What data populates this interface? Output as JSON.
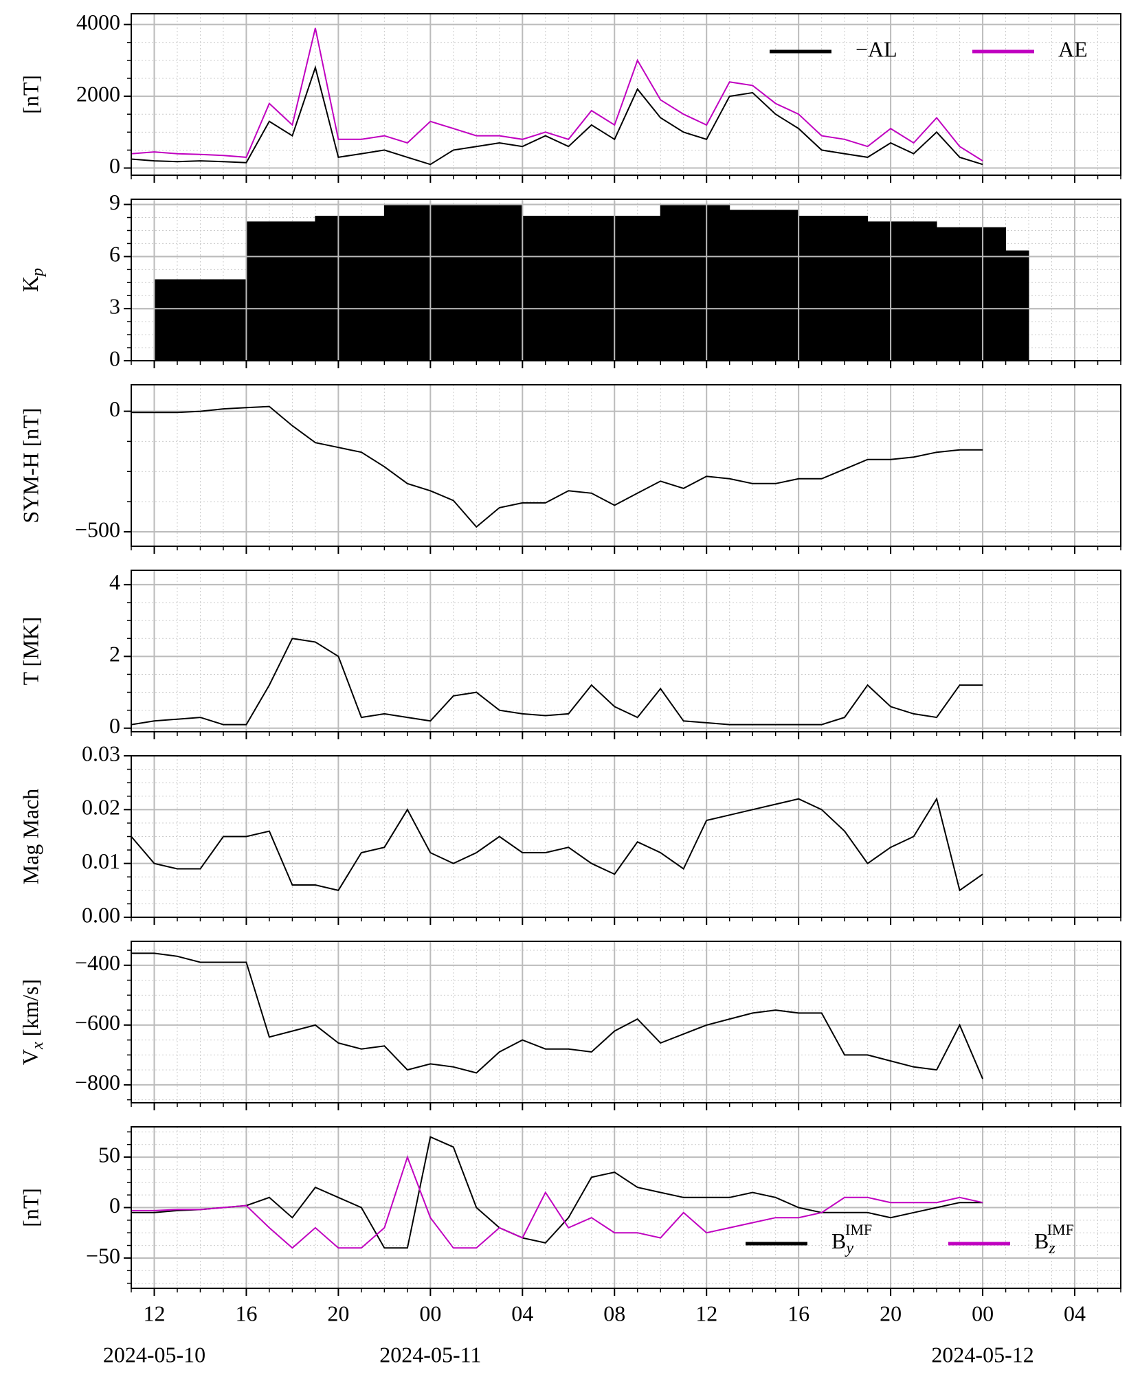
{
  "time_axis": {
    "x": [
      "2024-05-10T11:00",
      "2024-05-10T12:00",
      "2024-05-10T13:00",
      "2024-05-10T14:00",
      "2024-05-10T15:00",
      "2024-05-10T16:00",
      "2024-05-10T17:00",
      "2024-05-10T18:00",
      "2024-05-10T19:00",
      "2024-05-10T20:00",
      "2024-05-10T21:00",
      "2024-05-10T22:00",
      "2024-05-10T23:00",
      "2024-05-11T00:00",
      "2024-05-11T01:00",
      "2024-05-11T02:00",
      "2024-05-11T03:00",
      "2024-05-11T04:00",
      "2024-05-11T05:00",
      "2024-05-11T06:00",
      "2024-05-11T07:00",
      "2024-05-11T08:00",
      "2024-05-11T09:00",
      "2024-05-11T10:00",
      "2024-05-11T11:00",
      "2024-05-11T12:00",
      "2024-05-11T13:00",
      "2024-05-11T14:00",
      "2024-05-11T15:00",
      "2024-05-11T16:00",
      "2024-05-11T17:00",
      "2024-05-11T18:00",
      "2024-05-11T19:00",
      "2024-05-11T20:00",
      "2024-05-11T21:00",
      "2024-05-11T22:00",
      "2024-05-11T23:00",
      "2024-05-12T00:00"
    ],
    "xlim": [
      "2024-05-10T11:00",
      "2024-05-12T06:00"
    ],
    "xticks": [
      {
        "value": "2024-05-10T12:00",
        "label": "12"
      },
      {
        "value": "2024-05-10T16:00",
        "label": "16"
      },
      {
        "value": "2024-05-10T20:00",
        "label": "20"
      },
      {
        "value": "2024-05-11T00:00",
        "label": "00"
      },
      {
        "value": "2024-05-11T04:00",
        "label": "04"
      },
      {
        "value": "2024-05-11T08:00",
        "label": "08"
      },
      {
        "value": "2024-05-11T12:00",
        "label": "12"
      },
      {
        "value": "2024-05-11T16:00",
        "label": "16"
      },
      {
        "value": "2024-05-11T20:00",
        "label": "20"
      },
      {
        "value": "2024-05-12T00:00",
        "label": "00"
      },
      {
        "value": "2024-05-12T04:00",
        "label": "04"
      }
    ],
    "xdates": [
      {
        "value": "2024-05-10T12:00",
        "label": "2024-05-10"
      },
      {
        "value": "2024-05-11T00:00",
        "label": "2024-05-11"
      },
      {
        "value": "2024-05-12T00:00",
        "label": "2024-05-12"
      }
    ]
  },
  "chart_data": [
    {
      "type": "line",
      "ylabel": "[nT]",
      "ylim": [
        -200,
        4300
      ],
      "yticks": [
        0,
        2000,
        4000
      ],
      "grid": true,
      "legend": "upper right",
      "series": [
        {
          "name": "−AL",
          "color": "#000000",
          "values": [
            250,
            200,
            180,
            200,
            180,
            150,
            1300,
            900,
            2800,
            300,
            400,
            500,
            300,
            100,
            500,
            600,
            700,
            600,
            900,
            600,
            1200,
            800,
            2200,
            1400,
            1000,
            800,
            2000,
            2100,
            1500,
            1100,
            500,
            400,
            300,
            700,
            400,
            1000,
            300,
            100
          ]
        },
        {
          "name": "AE",
          "color": "#c000c0",
          "values": [
            400,
            450,
            400,
            380,
            350,
            300,
            1800,
            1200,
            3900,
            800,
            800,
            900,
            700,
            1300,
            1100,
            900,
            900,
            800,
            1000,
            800,
            1600,
            1200,
            3000,
            1900,
            1500,
            1200,
            2400,
            2300,
            1800,
            1500,
            900,
            800,
            600,
            1100,
            700,
            1400,
            600,
            200
          ]
        }
      ]
    },
    {
      "type": "step",
      "ylabel": {
        "text": "K",
        "sub": "p"
      },
      "ylim": [
        0,
        9.3
      ],
      "yticks": [
        0,
        3,
        6,
        9
      ],
      "grid": true,
      "color": "#000000",
      "edges": [
        "2024-05-10T12:00",
        "2024-05-10T16:00",
        "2024-05-10T19:00",
        "2024-05-10T22:00",
        "2024-05-11T04:00",
        "2024-05-11T10:00",
        "2024-05-11T13:00",
        "2024-05-11T16:00",
        "2024-05-11T19:00",
        "2024-05-11T22:00",
        "2024-05-12T01:00",
        "2024-05-12T02:00"
      ],
      "values": [
        4.67,
        8,
        8.33,
        9,
        8.33,
        9,
        8.67,
        8.33,
        8,
        7.67,
        6.33
      ]
    },
    {
      "type": "line",
      "ylabel": "SYM-H [nT]",
      "ylim": [
        -560,
        110
      ],
      "yticks": [
        {
          "value": -500,
          "label": "−500"
        },
        0
      ],
      "grid": true,
      "series": [
        {
          "color": "#000000",
          "values": [
            -5,
            -5,
            -5,
            0,
            10,
            15,
            20,
            -60,
            -130,
            -150,
            -170,
            -230,
            -300,
            -330,
            -370,
            -480,
            -400,
            -380,
            -380,
            -330,
            -340,
            -390,
            -340,
            -290,
            -320,
            -270,
            -280,
            -300,
            -300,
            -280,
            -280,
            -240,
            -200,
            -200,
            -190,
            -170,
            -160,
            -160
          ]
        }
      ]
    },
    {
      "type": "line",
      "ylabel": "T [MK]",
      "ylim": [
        -0.1,
        4.4
      ],
      "yticks": [
        0,
        2,
        4
      ],
      "grid": true,
      "series": [
        {
          "color": "#000000",
          "values": [
            0.1,
            0.2,
            0.25,
            0.3,
            0.1,
            0.1,
            1.2,
            2.5,
            2.4,
            2.0,
            0.3,
            0.4,
            0.3,
            0.2,
            0.9,
            1.0,
            0.5,
            0.4,
            0.35,
            0.4,
            1.2,
            0.6,
            0.3,
            1.1,
            0.2,
            0.15,
            0.1,
            0.1,
            0.1,
            0.1,
            0.1,
            0.3,
            1.2,
            0.6,
            0.4,
            0.3,
            1.2,
            1.2
          ]
        }
      ]
    },
    {
      "type": "line",
      "ylabel": "Mag Mach",
      "ylim": [
        0,
        0.03
      ],
      "yticks": [
        {
          "value": 0,
          "label": "0.00"
        },
        0.01,
        0.02,
        0.03
      ],
      "grid": true,
      "series": [
        {
          "color": "#000000",
          "values": [
            0.015,
            0.01,
            0.009,
            0.009,
            0.015,
            0.015,
            0.016,
            0.006,
            0.006,
            0.005,
            0.012,
            0.013,
            0.02,
            0.012,
            0.01,
            0.012,
            0.015,
            0.012,
            0.012,
            0.013,
            0.01,
            0.008,
            0.014,
            0.012,
            0.009,
            0.018,
            0.019,
            0.02,
            0.021,
            0.022,
            0.02,
            0.016,
            0.01,
            0.013,
            0.015,
            0.022,
            0.005,
            0.008
          ]
        }
      ]
    },
    {
      "type": "line",
      "ylabel": {
        "text": "V",
        "sub": "x",
        "rest": " [km/s]"
      },
      "ylim": [
        -860,
        -320
      ],
      "yticks": [
        {
          "value": -800,
          "label": "−800"
        },
        {
          "value": -600,
          "label": "−600"
        },
        {
          "value": -400,
          "label": "−400"
        }
      ],
      "grid": true,
      "series": [
        {
          "color": "#000000",
          "values": [
            -360,
            -360,
            -370,
            -390,
            -390,
            -390,
            -640,
            -620,
            -600,
            -660,
            -680,
            -670,
            -750,
            -730,
            -740,
            -760,
            -690,
            -650,
            -680,
            -680,
            -690,
            -620,
            -580,
            -660,
            -630,
            -600,
            -580,
            -560,
            -550,
            -560,
            -560,
            -700,
            -700,
            -720,
            -740,
            -750,
            -600,
            -780
          ]
        }
      ]
    },
    {
      "type": "line",
      "ylabel": "[nT]",
      "ylim": [
        -80,
        80
      ],
      "yticks": [
        {
          "value": -50,
          "label": "−50"
        },
        0,
        50
      ],
      "grid": true,
      "legend": "lower right",
      "series": [
        {
          "name": {
            "text": "B",
            "sub": "y",
            "sup": "IMF"
          },
          "color": "#000000",
          "values": [
            -5,
            -5,
            -3,
            -2,
            0,
            2,
            10,
            -10,
            20,
            10,
            0,
            -40,
            -40,
            70,
            60,
            0,
            -20,
            -30,
            -35,
            -10,
            30,
            35,
            20,
            15,
            10,
            10,
            10,
            15,
            10,
            0,
            -5,
            -5,
            -5,
            -10,
            -5,
            0,
            5,
            5
          ]
        },
        {
          "name": {
            "text": "B",
            "sub": "z",
            "sup": "IMF"
          },
          "color": "#c000c0",
          "values": [
            -3,
            -3,
            -2,
            -2,
            0,
            2,
            -20,
            -40,
            -20,
            -40,
            -40,
            -20,
            50,
            -10,
            -40,
            -40,
            -20,
            -30,
            15,
            -20,
            -10,
            -25,
            -25,
            -30,
            -5,
            -25,
            -20,
            -15,
            -10,
            -10,
            -5,
            10,
            10,
            5,
            5,
            5,
            10,
            5
          ]
        }
      ]
    }
  ]
}
